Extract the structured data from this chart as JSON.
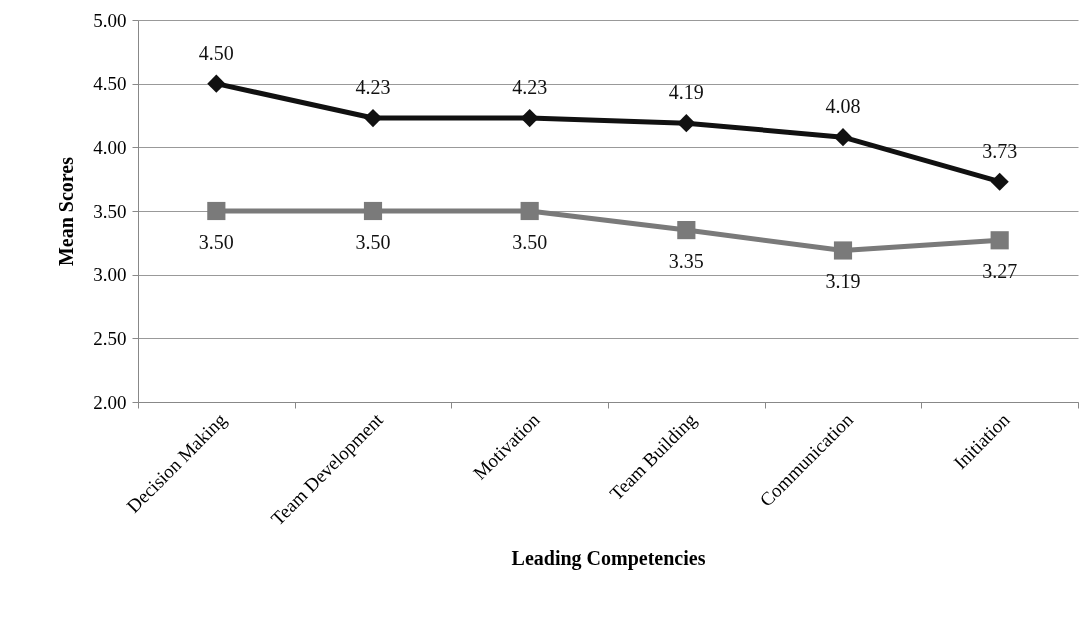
{
  "chart_data": {
    "type": "line",
    "xlabel": "Leading Competencies",
    "ylabel": "Mean Scores",
    "categories": [
      "Decision Making",
      "Team Development",
      "Motivation",
      "Team Building",
      "Communication",
      "Initiation"
    ],
    "series": [
      {
        "color": "#111111",
        "marker": "diamond",
        "values": [
          4.5,
          4.23,
          4.23,
          4.19,
          4.08,
          3.73
        ],
        "value_labels": [
          "4.50",
          "4.23",
          "4.23",
          "4.19",
          "4.08",
          "3.73"
        ]
      },
      {
        "color": "#7a7a7a",
        "marker": "square",
        "values": [
          3.5,
          3.5,
          3.5,
          3.35,
          3.19,
          3.27
        ],
        "value_labels": [
          "3.50",
          "3.50",
          "3.50",
          "3.35",
          "3.19",
          "3.27"
        ]
      }
    ],
    "ylim": [
      2,
      5
    ],
    "yticks": [
      {
        "value": 2,
        "label": "2.00"
      },
      {
        "value": 2.5,
        "label": "2.50"
      },
      {
        "value": 3,
        "label": "3.00"
      },
      {
        "value": 3.5,
        "label": "3.50"
      },
      {
        "value": 4,
        "label": "4.00"
      },
      {
        "value": 4.5,
        "label": "4.50"
      },
      {
        "value": 5,
        "label": "5.00"
      }
    ],
    "grid": "y",
    "line_style": "solid"
  }
}
